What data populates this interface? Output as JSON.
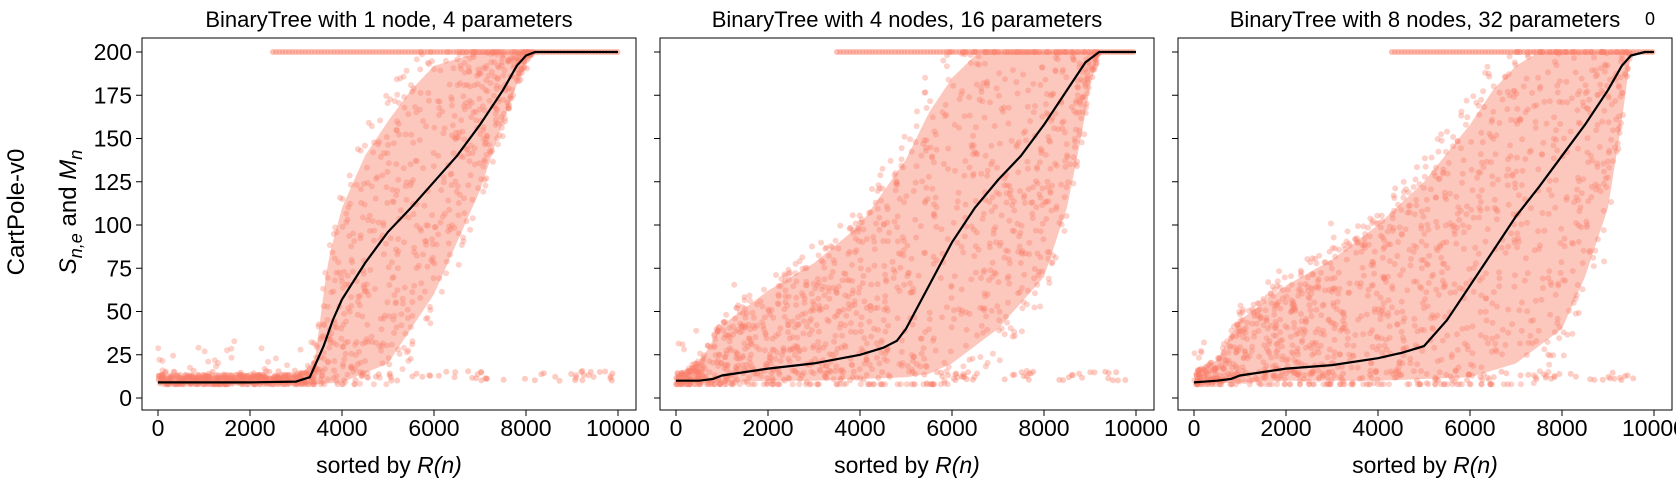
{
  "figure": {
    "row_label": "CartPole-v0",
    "ylabel_main": "S",
    "ylabel_sub": "n,e",
    "ylabel_and": " and ",
    "ylabel_main2": "M",
    "ylabel_sub2": "n",
    "xlabel_prefix": "sorted by ",
    "xlabel_italic": "R(n)",
    "stray_tick": "0",
    "colors": {
      "scatter": "#fa7f6a",
      "band": "#fbb5a8",
      "median_line": "#000000"
    }
  },
  "chart_data": [
    {
      "type": "scatter",
      "title": "BinaryTree with 1 node, 4 parameters",
      "xlim": [
        0,
        10000
      ],
      "ylim": [
        0,
        210
      ],
      "xticks": [
        "0",
        "2000",
        "4000",
        "6000",
        "8000",
        "10000"
      ],
      "yticks": [
        "0",
        "25",
        "50",
        "75",
        "100",
        "125",
        "150",
        "175",
        "200"
      ],
      "median_line": {
        "x": [
          0,
          1000,
          2000,
          3000,
          3300,
          3600,
          3800,
          4000,
          4500,
          5000,
          5500,
          6000,
          6500,
          7000,
          7500,
          7800,
          8000,
          8200,
          9000,
          10000
        ],
        "y": [
          9,
          9,
          9,
          9.5,
          12,
          30,
          45,
          57,
          78,
          96,
          110,
          125,
          140,
          158,
          178,
          192,
          198,
          200,
          200,
          200
        ]
      },
      "band_lower": {
        "x": [
          0,
          3000,
          3400,
          4000,
          5000,
          6000,
          7000,
          7500,
          8000,
          8200
        ],
        "y": [
          8,
          8,
          8,
          9,
          20,
          60,
          120,
          160,
          195,
          200
        ]
      },
      "band_upper": {
        "x": [
          0,
          3000,
          3400,
          3700,
          4000,
          4500,
          5000,
          5500,
          6000,
          7000,
          7800,
          8200
        ],
        "y": [
          13,
          13,
          20,
          80,
          110,
          140,
          160,
          178,
          192,
          200,
          200,
          200
        ]
      },
      "top_row": {
        "from": 2500,
        "to": 10000,
        "y": 200
      }
    },
    {
      "type": "scatter",
      "title": "BinaryTree with 4 nodes, 16 parameters",
      "xlim": [
        0,
        10000
      ],
      "ylim": [
        0,
        210
      ],
      "xticks": [
        "0",
        "2000",
        "4000",
        "6000",
        "8000",
        "10000"
      ],
      "yticks": [
        "0",
        "25",
        "50",
        "75",
        "100",
        "125",
        "150",
        "175",
        "200"
      ],
      "median_line": {
        "x": [
          0,
          500,
          800,
          1000,
          2000,
          3000,
          4000,
          4500,
          4800,
          5000,
          5200,
          5500,
          6000,
          6500,
          7000,
          7500,
          8000,
          8500,
          8900,
          9200,
          9500,
          10000
        ],
        "y": [
          10,
          10,
          11,
          13,
          17,
          20,
          25,
          29,
          33,
          40,
          50,
          65,
          90,
          110,
          126,
          140,
          158,
          178,
          194,
          200,
          200,
          200
        ]
      },
      "band_lower": {
        "x": [
          0,
          1000,
          2000,
          3000,
          4000,
          5000,
          5500,
          6000,
          7000,
          8000,
          8500,
          8800,
          9000,
          9200
        ],
        "y": [
          8,
          9,
          10,
          10,
          11,
          12,
          14,
          20,
          40,
          70,
          110,
          150,
          180,
          200
        ]
      },
      "band_upper": {
        "x": [
          0,
          500,
          1000,
          2000,
          3000,
          4000,
          5000,
          5500,
          6000,
          6500,
          7000,
          7500,
          8000,
          9000
        ],
        "y": [
          14,
          20,
          42,
          62,
          78,
          100,
          138,
          165,
          185,
          198,
          200,
          200,
          200,
          200
        ]
      },
      "top_row": {
        "from": 3500,
        "to": 10000,
        "y": 200
      }
    },
    {
      "type": "scatter",
      "title": "BinaryTree with 8 nodes, 32 parameters",
      "xlim": [
        0,
        10000
      ],
      "ylim": [
        0,
        210
      ],
      "xticks": [
        "0",
        "2000",
        "4000",
        "6000",
        "8000",
        "10000"
      ],
      "yticks": [
        "0",
        "25",
        "50",
        "75",
        "100",
        "125",
        "150",
        "175",
        "200"
      ],
      "median_line": {
        "x": [
          0,
          500,
          800,
          1000,
          2000,
          3000,
          4000,
          4500,
          5000,
          5500,
          6000,
          6500,
          7000,
          7500,
          8000,
          8500,
          9000,
          9300,
          9500,
          9800,
          10000
        ],
        "y": [
          9,
          10,
          11,
          13,
          17,
          19,
          23,
          26,
          30,
          45,
          65,
          85,
          105,
          122,
          140,
          158,
          178,
          192,
          198,
          200,
          200
        ]
      },
      "band_lower": {
        "x": [
          0,
          1000,
          2000,
          3000,
          4000,
          5000,
          6000,
          7000,
          8000,
          8500,
          9000,
          9300,
          9500
        ],
        "y": [
          8,
          9,
          10,
          10,
          10,
          11,
          12,
          20,
          40,
          70,
          110,
          160,
          200
        ]
      },
      "band_upper": {
        "x": [
          0,
          500,
          1000,
          2000,
          3000,
          4000,
          5000,
          6000,
          6500,
          7000,
          7500,
          8000,
          9000
        ],
        "y": [
          14,
          22,
          45,
          65,
          80,
          100,
          125,
          158,
          178,
          192,
          200,
          200,
          200
        ]
      },
      "top_row": {
        "from": 4300,
        "to": 10000,
        "y": 200
      }
    }
  ]
}
